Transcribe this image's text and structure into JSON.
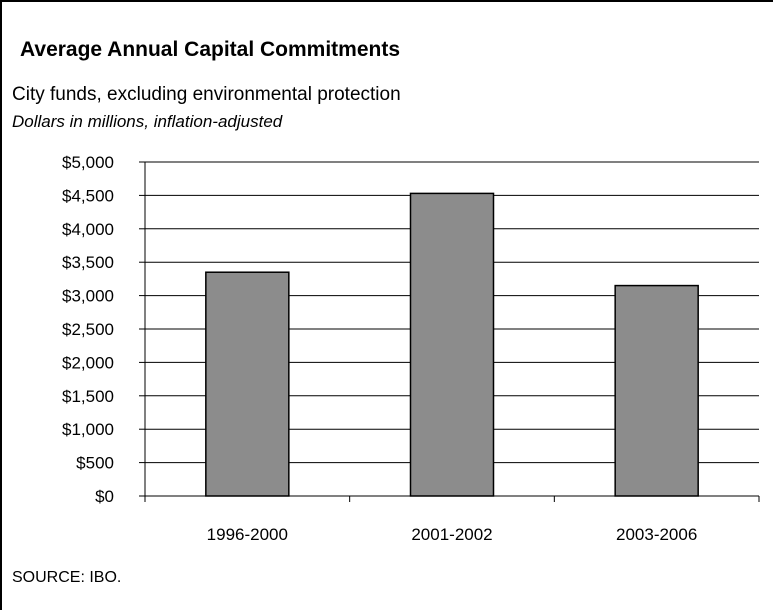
{
  "chart_data": {
    "type": "bar",
    "title": "Average Annual Capital Commitments",
    "subtitle": "City funds, excluding environmental protection",
    "units_note": "Dollars in millions, inflation-adjusted",
    "categories": [
      "1996-2000",
      "2001-2002",
      "2003-2006"
    ],
    "values": [
      3350,
      4530,
      3150
    ],
    "ylim": [
      0,
      5000
    ],
    "yticks": [
      0,
      500,
      1000,
      1500,
      2000,
      2500,
      3000,
      3500,
      4000,
      4500,
      5000
    ],
    "ytick_labels": [
      "$0",
      "$500",
      "$1,000",
      "$1,500",
      "$2,000",
      "$2,500",
      "$3,000",
      "$3,500",
      "$4,000",
      "$4,500",
      "$5,000"
    ],
    "xlabel": "",
    "ylabel": "",
    "grid": true,
    "legend": "none",
    "bar_color": "#8c8c8c",
    "source": "SOURCE: IBO."
  }
}
